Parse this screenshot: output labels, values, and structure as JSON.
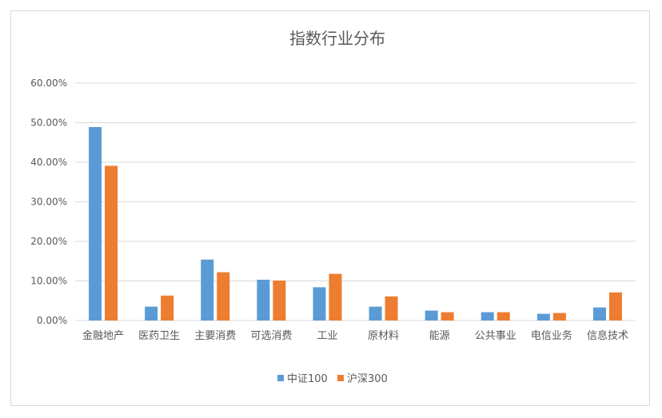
{
  "chart_data": {
    "type": "bar",
    "title": "指数行业分布",
    "xlabel": "",
    "ylabel": "",
    "categories": [
      "金融地产",
      "医药卫生",
      "主要消费",
      "可选消费",
      "工业",
      "原材料",
      "能源",
      "公共事业",
      "电信业务",
      "信息技术"
    ],
    "series": [
      {
        "name": "中证100",
        "color": "#5b9bd5",
        "values": [
          0.489,
          0.035,
          0.154,
          0.103,
          0.084,
          0.035,
          0.025,
          0.021,
          0.017,
          0.033
        ]
      },
      {
        "name": "沪深300",
        "color": "#ed7d31",
        "values": [
          0.391,
          0.063,
          0.122,
          0.101,
          0.118,
          0.061,
          0.021,
          0.021,
          0.019,
          0.071
        ]
      }
    ],
    "ylim": [
      0,
      0.6
    ],
    "yticks": [
      0,
      0.1,
      0.2,
      0.3,
      0.4,
      0.5,
      0.6
    ],
    "ytick_labels": [
      "0.00%",
      "10.00%",
      "20.00%",
      "30.00%",
      "40.00%",
      "50.00%",
      "60.00%"
    ],
    "grid": true,
    "legend_position": "bottom"
  }
}
